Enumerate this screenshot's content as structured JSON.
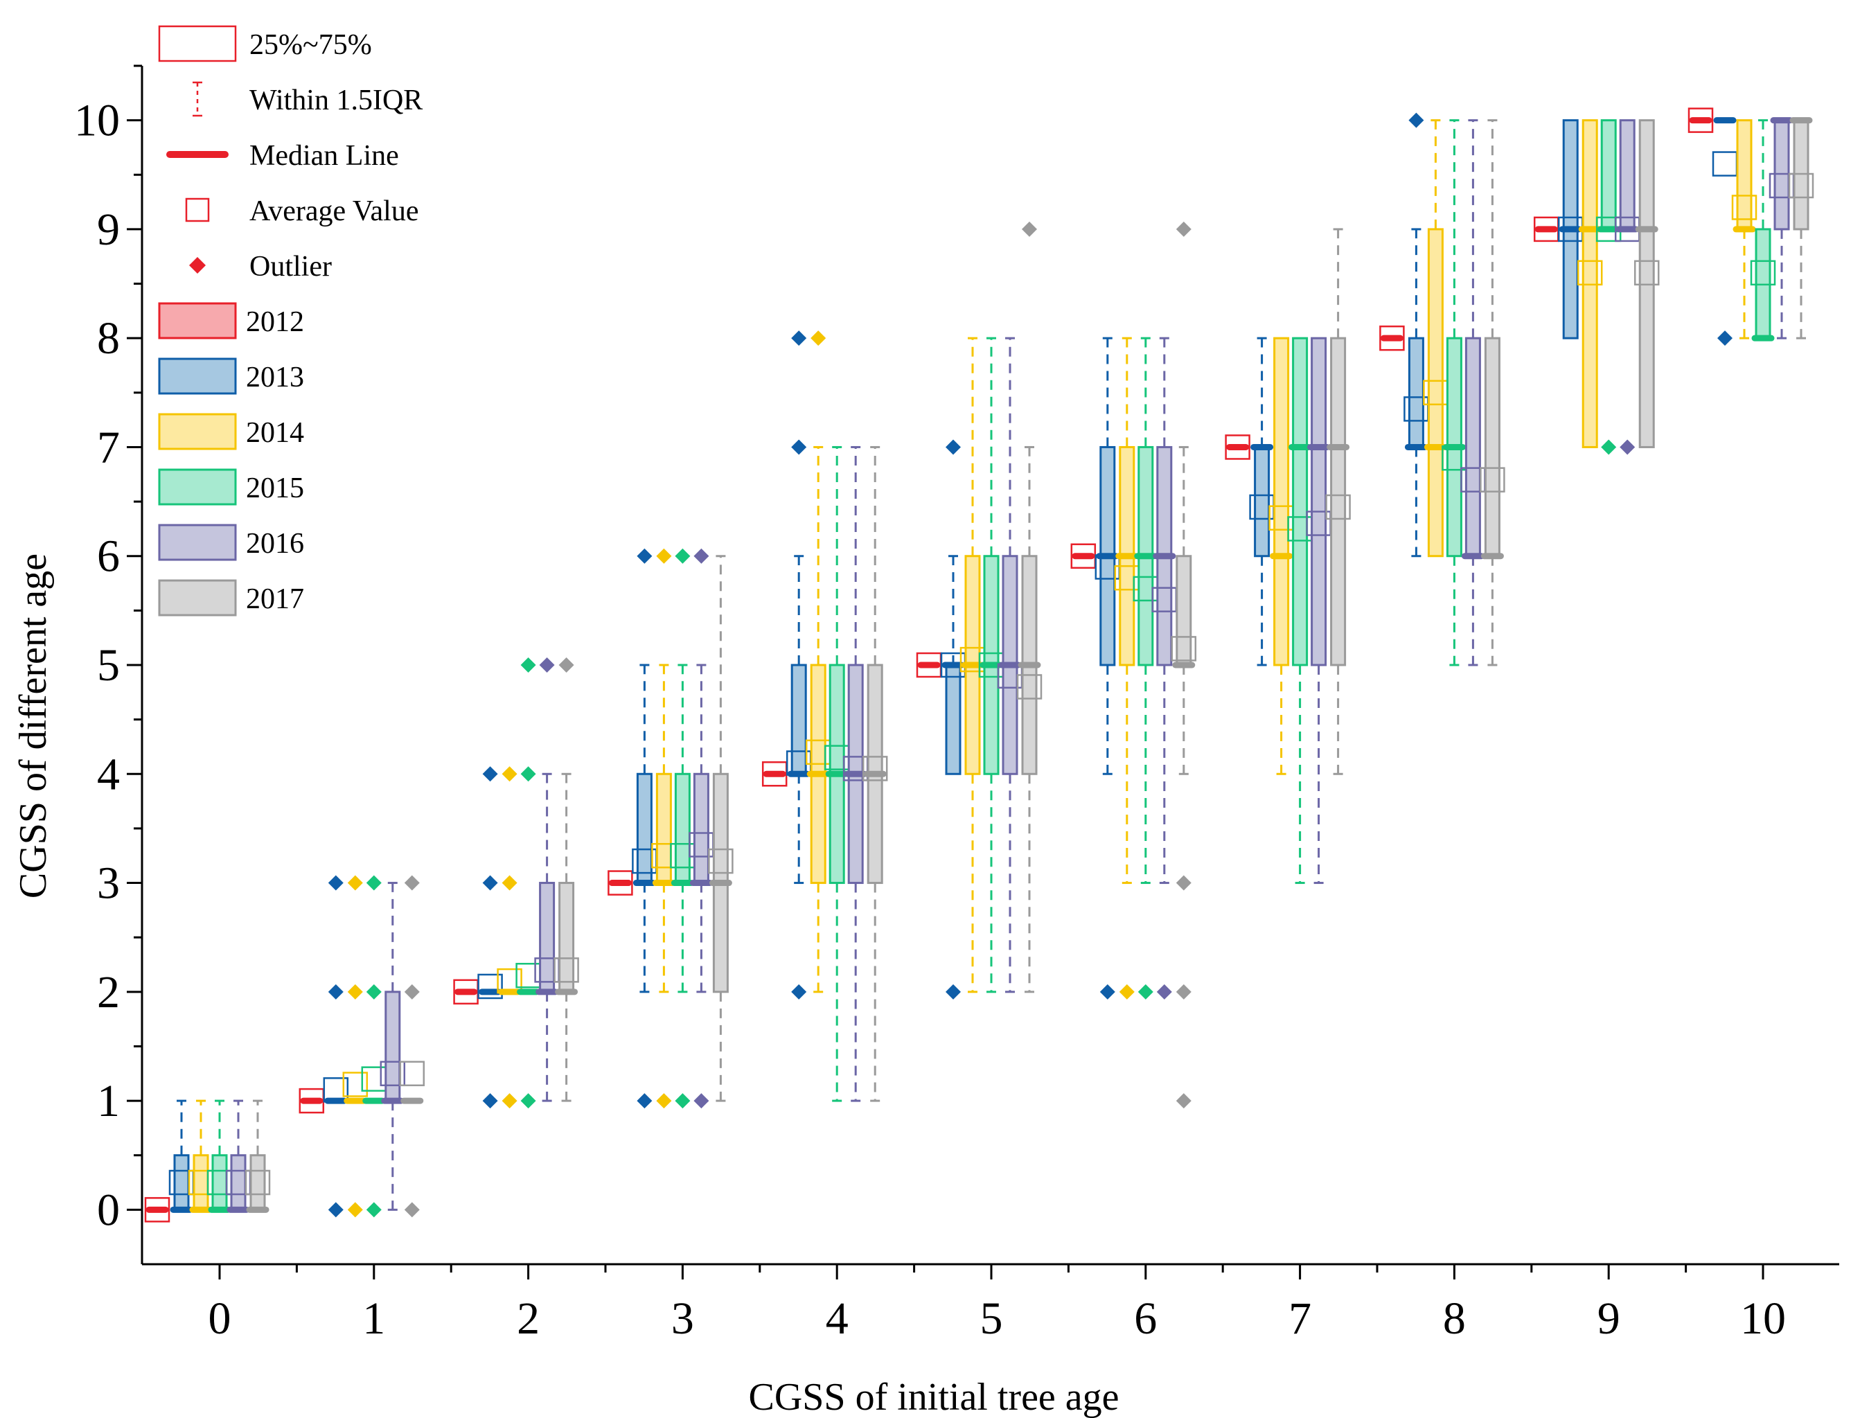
{
  "chart_data": {
    "type": "box",
    "xlabel": "CGSS of initial tree age",
    "ylabel": "CGSS of different age",
    "categories": [
      "0",
      "1",
      "2",
      "3",
      "4",
      "5",
      "6",
      "7",
      "8",
      "9",
      "10"
    ],
    "yticks": [
      "0",
      "1",
      "2",
      "3",
      "4",
      "5",
      "6",
      "7",
      "8",
      "9",
      "10"
    ],
    "ylim": [
      -0.5,
      10.5
    ],
    "legend_position": "top-left",
    "legend_symbols": [
      {
        "key": "box",
        "label": "25%~75%"
      },
      {
        "key": "whisker",
        "label": "Within 1.5IQR"
      },
      {
        "key": "median",
        "label": "Median Line"
      },
      {
        "key": "mean",
        "label": "Average Value"
      },
      {
        "key": "outlier",
        "label": "Outlier"
      }
    ],
    "series": [
      {
        "name": "2012",
        "fill": "#f7a9ad",
        "stroke": "#e8202a",
        "boxes": [
          {
            "q1": 0,
            "q3": 0,
            "wlo": 0,
            "whi": 0,
            "median": 0,
            "mean": 0,
            "outliers": []
          },
          {
            "q1": 1,
            "q3": 1,
            "wlo": 1,
            "whi": 1,
            "median": 1,
            "mean": 1,
            "outliers": []
          },
          {
            "q1": 2,
            "q3": 2,
            "wlo": 2,
            "whi": 2,
            "median": 2,
            "mean": 2,
            "outliers": []
          },
          {
            "q1": 3,
            "q3": 3,
            "wlo": 3,
            "whi": 3,
            "median": 3,
            "mean": 3,
            "outliers": []
          },
          {
            "q1": 4,
            "q3": 4,
            "wlo": 4,
            "whi": 4,
            "median": 4,
            "mean": 4,
            "outliers": []
          },
          {
            "q1": 5,
            "q3": 5,
            "wlo": 5,
            "whi": 5,
            "median": 5,
            "mean": 5,
            "outliers": []
          },
          {
            "q1": 6,
            "q3": 6,
            "wlo": 6,
            "whi": 6,
            "median": 6,
            "mean": 6,
            "outliers": []
          },
          {
            "q1": 7,
            "q3": 7,
            "wlo": 7,
            "whi": 7,
            "median": 7,
            "mean": 7,
            "outliers": []
          },
          {
            "q1": 8,
            "q3": 8,
            "wlo": 8,
            "whi": 8,
            "median": 8,
            "mean": 8,
            "outliers": []
          },
          {
            "q1": 9,
            "q3": 9,
            "wlo": 9,
            "whi": 9,
            "median": 9,
            "mean": 9,
            "outliers": []
          },
          {
            "q1": 10,
            "q3": 10,
            "wlo": 10,
            "whi": 10,
            "median": 10,
            "mean": 10,
            "outliers": []
          }
        ]
      },
      {
        "name": "2013",
        "fill": "#a6c8e1",
        "stroke": "#0f5ea8",
        "boxes": [
          {
            "q1": 0,
            "q3": 0.5,
            "wlo": 0,
            "whi": 1,
            "median": 0,
            "mean": 0.25,
            "outliers": []
          },
          {
            "q1": 1,
            "q3": 1,
            "wlo": 1,
            "whi": 1,
            "median": 1,
            "mean": 1.1,
            "outliers": [
              0,
              2,
              3
            ]
          },
          {
            "q1": 2,
            "q3": 2,
            "wlo": 2,
            "whi": 2,
            "median": 2,
            "mean": 2.05,
            "outliers": [
              1,
              3,
              4
            ]
          },
          {
            "q1": 3,
            "q3": 4,
            "wlo": 2,
            "whi": 5,
            "median": 3,
            "mean": 3.2,
            "outliers": [
              1,
              6
            ]
          },
          {
            "q1": 4,
            "q3": 5,
            "wlo": 3,
            "whi": 6,
            "median": 4,
            "mean": 4.1,
            "outliers": [
              2,
              7,
              8
            ]
          },
          {
            "q1": 4,
            "q3": 5,
            "wlo": 4,
            "whi": 6,
            "median": 5,
            "mean": 5.0,
            "outliers": [
              2,
              7
            ]
          },
          {
            "q1": 5,
            "q3": 7,
            "wlo": 4,
            "whi": 8,
            "median": 6,
            "mean": 5.9,
            "outliers": [
              2
            ]
          },
          {
            "q1": 6,
            "q3": 7,
            "wlo": 5,
            "whi": 8,
            "median": 7,
            "mean": 6.45,
            "outliers": []
          },
          {
            "q1": 7,
            "q3": 8,
            "wlo": 6,
            "whi": 9,
            "median": 7,
            "mean": 7.35,
            "outliers": [
              10
            ]
          },
          {
            "q1": 8,
            "q3": 10,
            "wlo": 8,
            "whi": 10,
            "median": 9,
            "mean": 9.0,
            "outliers": []
          },
          {
            "q1": 10,
            "q3": 10,
            "wlo": 10,
            "whi": 10,
            "median": 10,
            "mean": 9.6,
            "outliers": [
              8
            ]
          }
        ]
      },
      {
        "name": "2014",
        "fill": "#fde9a0",
        "stroke": "#f5c400",
        "boxes": [
          {
            "q1": 0,
            "q3": 0.5,
            "wlo": 0,
            "whi": 1,
            "median": 0,
            "mean": 0.25,
            "outliers": []
          },
          {
            "q1": 1,
            "q3": 1,
            "wlo": 1,
            "whi": 1,
            "median": 1,
            "mean": 1.15,
            "outliers": [
              0,
              2,
              3
            ]
          },
          {
            "q1": 2,
            "q3": 2,
            "wlo": 2,
            "whi": 2,
            "median": 2,
            "mean": 2.1,
            "outliers": [
              1,
              3,
              4
            ]
          },
          {
            "q1": 3,
            "q3": 4,
            "wlo": 2,
            "whi": 5,
            "median": 3,
            "mean": 3.25,
            "outliers": [
              1,
              6
            ]
          },
          {
            "q1": 3,
            "q3": 5,
            "wlo": 2,
            "whi": 7,
            "median": 4,
            "mean": 4.2,
            "outliers": [
              8
            ]
          },
          {
            "q1": 4,
            "q3": 6,
            "wlo": 2,
            "whi": 8,
            "median": 5,
            "mean": 5.05,
            "outliers": []
          },
          {
            "q1": 5,
            "q3": 7,
            "wlo": 3,
            "whi": 8,
            "median": 6,
            "mean": 5.8,
            "outliers": [
              2
            ]
          },
          {
            "q1": 5,
            "q3": 8,
            "wlo": 4,
            "whi": 8,
            "median": 6,
            "mean": 6.35,
            "outliers": []
          },
          {
            "q1": 6,
            "q3": 9,
            "wlo": 6,
            "whi": 10,
            "median": 7,
            "mean": 7.5,
            "outliers": []
          },
          {
            "q1": 7,
            "q3": 10,
            "wlo": 7,
            "whi": 10,
            "median": 9,
            "mean": 8.6,
            "outliers": []
          },
          {
            "q1": 9,
            "q3": 10,
            "wlo": 8,
            "whi": 10,
            "median": 9,
            "mean": 9.2,
            "outliers": []
          }
        ]
      },
      {
        "name": "2015",
        "fill": "#a7ead0",
        "stroke": "#16c47a",
        "boxes": [
          {
            "q1": 0,
            "q3": 0.5,
            "wlo": 0,
            "whi": 1,
            "median": 0,
            "mean": 0.25,
            "outliers": []
          },
          {
            "q1": 1,
            "q3": 1,
            "wlo": 1,
            "whi": 1,
            "median": 1,
            "mean": 1.2,
            "outliers": [
              0,
              2,
              3
            ]
          },
          {
            "q1": 2,
            "q3": 2,
            "wlo": 2,
            "whi": 2,
            "median": 2,
            "mean": 2.15,
            "outliers": [
              1,
              4,
              5
            ]
          },
          {
            "q1": 3,
            "q3": 4,
            "wlo": 2,
            "whi": 5,
            "median": 3,
            "mean": 3.25,
            "outliers": [
              1,
              6
            ]
          },
          {
            "q1": 3,
            "q3": 5,
            "wlo": 1,
            "whi": 7,
            "median": 4,
            "mean": 4.15,
            "outliers": []
          },
          {
            "q1": 4,
            "q3": 6,
            "wlo": 2,
            "whi": 8,
            "median": 5,
            "mean": 5.0,
            "outliers": []
          },
          {
            "q1": 5,
            "q3": 7,
            "wlo": 3,
            "whi": 8,
            "median": 6,
            "mean": 5.7,
            "outliers": [
              2
            ]
          },
          {
            "q1": 5,
            "q3": 8,
            "wlo": 3,
            "whi": 8,
            "median": 7,
            "mean": 6.25,
            "outliers": []
          },
          {
            "q1": 6,
            "q3": 8,
            "wlo": 5,
            "whi": 10,
            "median": 7,
            "mean": 6.9,
            "outliers": []
          },
          {
            "q1": 9,
            "q3": 10,
            "wlo": 9,
            "whi": 10,
            "median": 9,
            "mean": 9.0,
            "outliers": [
              7
            ]
          },
          {
            "q1": 8,
            "q3": 9,
            "wlo": 8,
            "whi": 10,
            "median": 8,
            "mean": 8.6,
            "outliers": []
          }
        ]
      },
      {
        "name": "2016",
        "fill": "#c5c5dd",
        "stroke": "#6b66a6",
        "boxes": [
          {
            "q1": 0,
            "q3": 0.5,
            "wlo": 0,
            "whi": 1,
            "median": 0,
            "mean": 0.25,
            "outliers": []
          },
          {
            "q1": 1,
            "q3": 2,
            "wlo": 0,
            "whi": 3,
            "median": 1,
            "mean": 1.25,
            "outliers": []
          },
          {
            "q1": 2,
            "q3": 3,
            "wlo": 1,
            "whi": 4,
            "median": 2,
            "mean": 2.2,
            "outliers": [
              5
            ]
          },
          {
            "q1": 3,
            "q3": 4,
            "wlo": 2,
            "whi": 5,
            "median": 3,
            "mean": 3.35,
            "outliers": [
              1,
              6
            ]
          },
          {
            "q1": 3,
            "q3": 5,
            "wlo": 1,
            "whi": 7,
            "median": 4,
            "mean": 4.05,
            "outliers": []
          },
          {
            "q1": 4,
            "q3": 6,
            "wlo": 2,
            "whi": 8,
            "median": 5,
            "mean": 4.9,
            "outliers": []
          },
          {
            "q1": 5,
            "q3": 7,
            "wlo": 3,
            "whi": 8,
            "median": 6,
            "mean": 5.6,
            "outliers": [
              2
            ]
          },
          {
            "q1": 5,
            "q3": 8,
            "wlo": 3,
            "whi": 8,
            "median": 7,
            "mean": 6.3,
            "outliers": []
          },
          {
            "q1": 6,
            "q3": 8,
            "wlo": 5,
            "whi": 10,
            "median": 6,
            "mean": 6.7,
            "outliers": []
          },
          {
            "q1": 9,
            "q3": 10,
            "wlo": 9,
            "whi": 10,
            "median": 9,
            "mean": 9.0,
            "outliers": [
              7
            ]
          },
          {
            "q1": 9,
            "q3": 10,
            "wlo": 8,
            "whi": 10,
            "median": 10,
            "mean": 9.4,
            "outliers": []
          }
        ]
      },
      {
        "name": "2017",
        "fill": "#d6d6d6",
        "stroke": "#9a9a9a",
        "boxes": [
          {
            "q1": 0,
            "q3": 0.5,
            "wlo": 0,
            "whi": 1,
            "median": 0,
            "mean": 0.25,
            "outliers": []
          },
          {
            "q1": 1,
            "q3": 1,
            "wlo": 1,
            "whi": 1,
            "median": 1,
            "mean": 1.25,
            "outliers": [
              0,
              2,
              3
            ]
          },
          {
            "q1": 2,
            "q3": 3,
            "wlo": 1,
            "whi": 4,
            "median": 2,
            "mean": 2.2,
            "outliers": [
              5
            ]
          },
          {
            "q1": 2,
            "q3": 4,
            "wlo": 1,
            "whi": 6,
            "median": 3,
            "mean": 3.2,
            "outliers": []
          },
          {
            "q1": 3,
            "q3": 5,
            "wlo": 1,
            "whi": 7,
            "median": 4,
            "mean": 4.05,
            "outliers": []
          },
          {
            "q1": 4,
            "q3": 6,
            "wlo": 2,
            "whi": 7,
            "median": 5,
            "mean": 4.8,
            "outliers": [
              9
            ]
          },
          {
            "q1": 5,
            "q3": 6,
            "wlo": 4,
            "whi": 7,
            "median": 5,
            "mean": 5.15,
            "outliers": [
              1,
              2,
              3,
              9
            ]
          },
          {
            "q1": 5,
            "q3": 8,
            "wlo": 4,
            "whi": 9,
            "median": 7,
            "mean": 6.45,
            "outliers": []
          },
          {
            "q1": 6,
            "q3": 8,
            "wlo": 5,
            "whi": 10,
            "median": 6,
            "mean": 6.7,
            "outliers": []
          },
          {
            "q1": 7,
            "q3": 10,
            "wlo": 7,
            "whi": 10,
            "median": 9,
            "mean": 8.6,
            "outliers": []
          },
          {
            "q1": 9,
            "q3": 10,
            "wlo": 8,
            "whi": 10,
            "median": 10,
            "mean": 9.4,
            "outliers": []
          }
        ]
      }
    ]
  }
}
